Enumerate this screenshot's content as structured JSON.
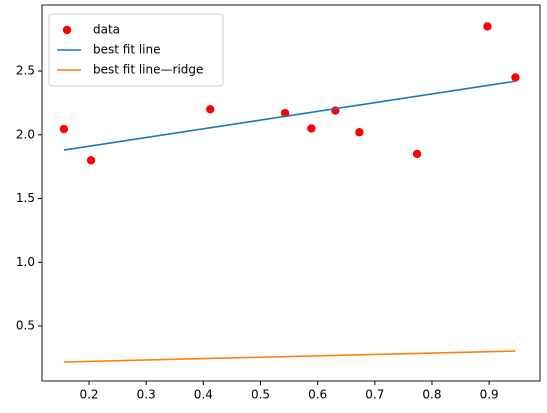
{
  "chart_data": {
    "type": "scatter",
    "xlim": [
      0.1177,
      0.989
    ],
    "ylim": [
      0.069,
      3.018
    ],
    "xticks": [
      0.2,
      0.3,
      0.4,
      0.5,
      0.6,
      0.7,
      0.8,
      0.9
    ],
    "yticks": [
      0.5,
      {
        "value": 1,
        "label": "1.0"
      },
      1.5,
      {
        "value": 2,
        "label": "2.0"
      },
      2.5
    ],
    "grid": false,
    "legend": "upper left",
    "series": [
      {
        "name": "data",
        "type": "scatter",
        "color": "#ff0000",
        "x": [
          0.156,
          0.2035,
          0.412,
          0.543,
          0.589,
          0.631,
          0.673,
          0.774,
          0.897,
          0.946
        ],
        "values": [
          2.045,
          1.8,
          2.2,
          2.17,
          2.05,
          2.19,
          2.02,
          1.85,
          2.85,
          2.45
        ]
      },
      {
        "name": "best fit line",
        "type": "line",
        "color": "#1f77b4",
        "x": [
          0.156,
          0.946
        ],
        "values": [
          1.88,
          2.42
        ]
      },
      {
        "name": "best fit line—ridge",
        "type": "line",
        "color": "#ff7f0e",
        "x": [
          0.156,
          0.946
        ],
        "values": [
          0.218,
          0.304
        ]
      }
    ]
  }
}
